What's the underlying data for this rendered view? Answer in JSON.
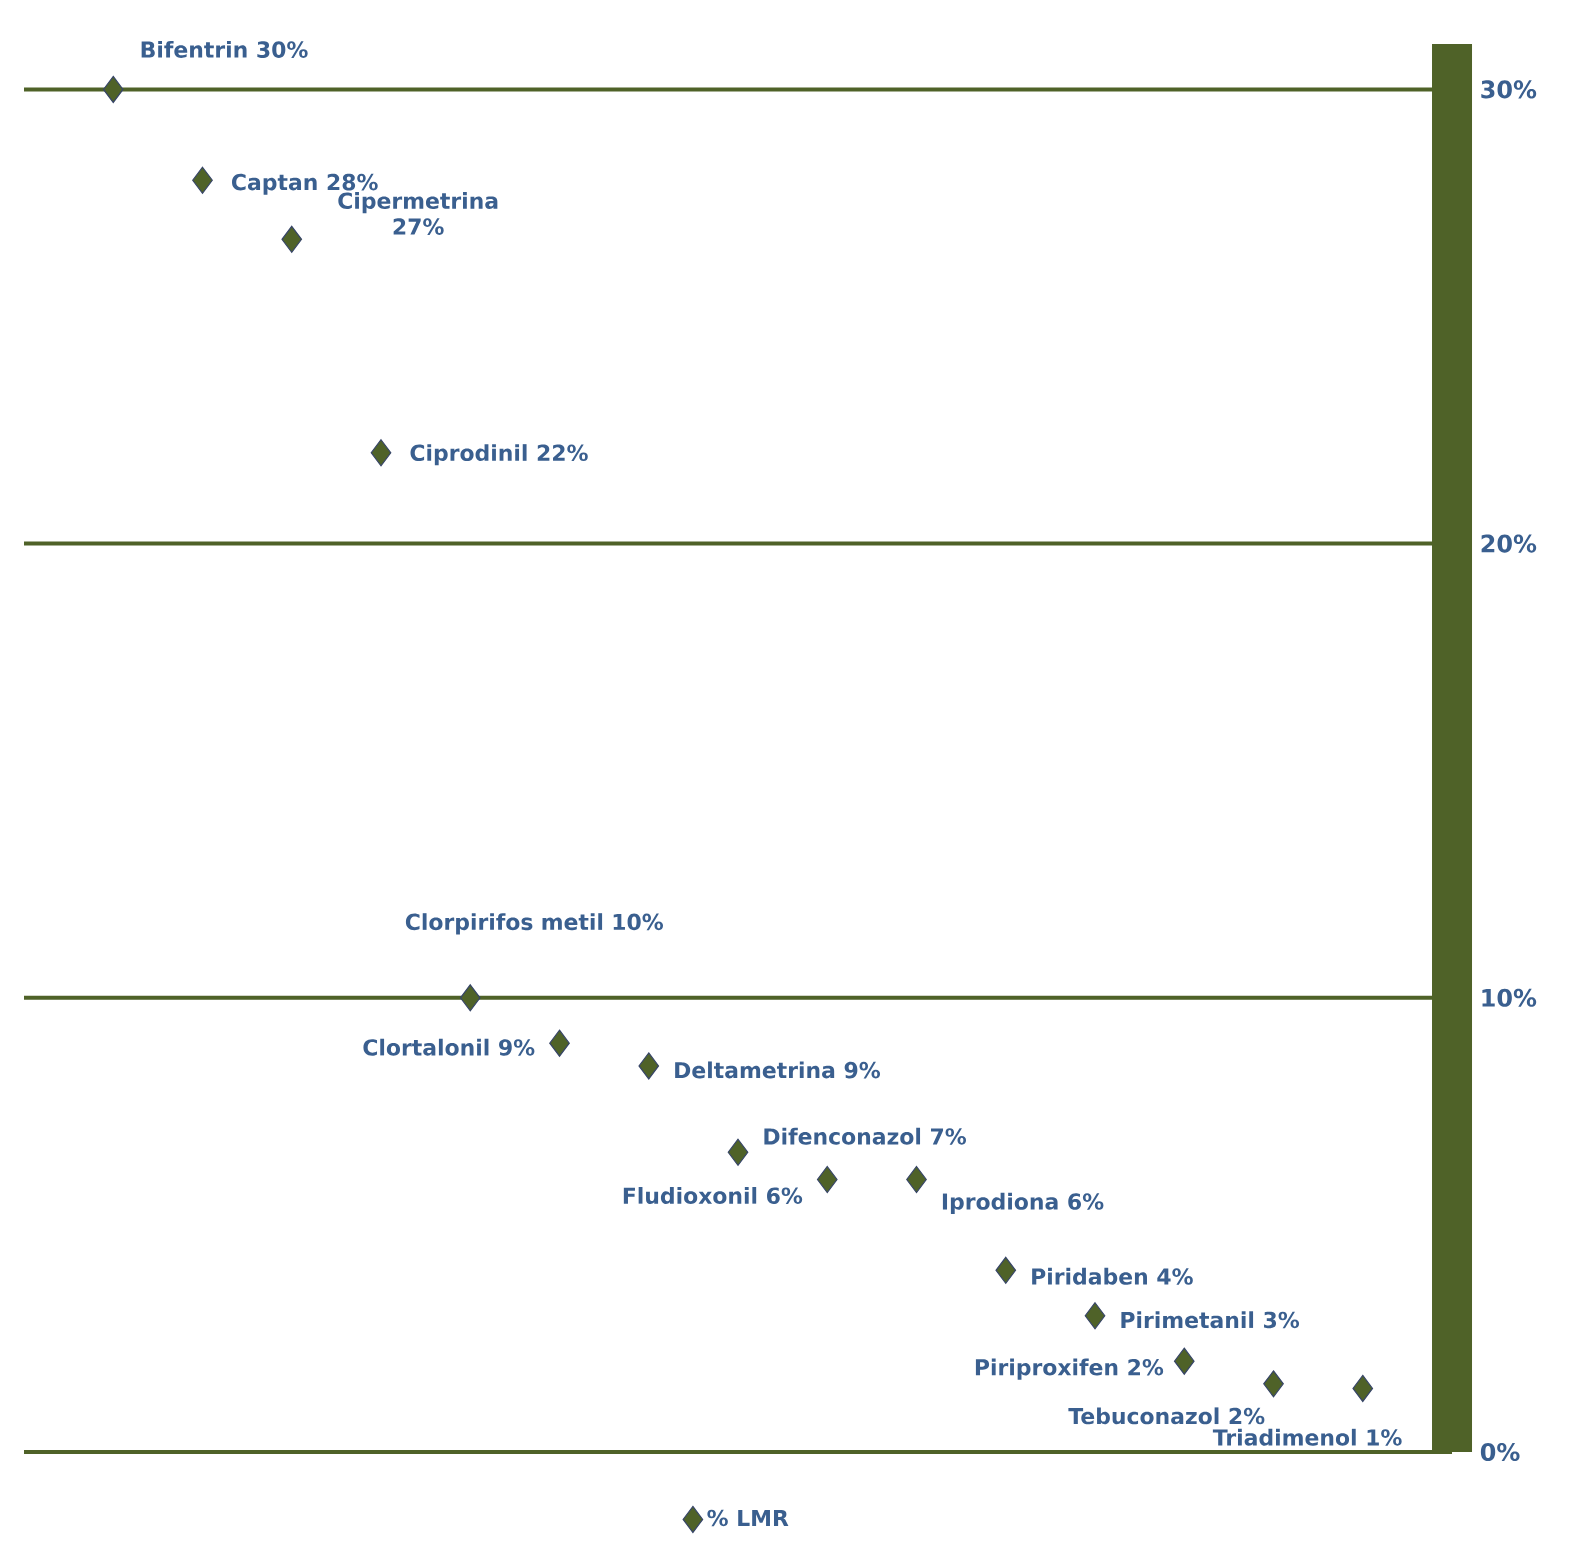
{
  "chart_data": {
    "type": "scatter",
    "categories": [
      null,
      null,
      null,
      null,
      null,
      null,
      null,
      null,
      null,
      null,
      null,
      null,
      null,
      null,
      null
    ],
    "series": [
      {
        "name": "% LMR",
        "color": "#4f6228",
        "values": [
          30,
          28,
          26.7,
          22,
          10,
          9,
          8.5,
          6.6,
          6,
          6,
          4,
          3,
          2,
          1.5,
          1.4
        ],
        "value_labels": [
          "Bifentrin  30%",
          "Captan 28%",
          "Cipermetrina 27%",
          "Ciprodinil 22%",
          "Clorpirifos metil 10%",
          "Clortalonil 9%",
          "Deltametrina 9%",
          "Difenconazol 7%",
          "Fludioxonil 6%",
          "Iprodiona 6%",
          "Piridaben 4%",
          "Pirimetanil 3%",
          "Piriproxifen 2%",
          "Tebuconazol 2%",
          "Triadimenol  1%"
        ]
      }
    ],
    "ylim": [
      0,
      31
    ],
    "yticks": [
      {
        "value": 0,
        "label": "0%"
      },
      {
        "value": 10,
        "label": "10%"
      },
      {
        "value": 20,
        "label": "20%"
      },
      {
        "value": 30,
        "label": "30%"
      }
    ],
    "grid": "y",
    "legend": "bottom",
    "marker": "diamond",
    "tick_labels": "y"
  }
}
